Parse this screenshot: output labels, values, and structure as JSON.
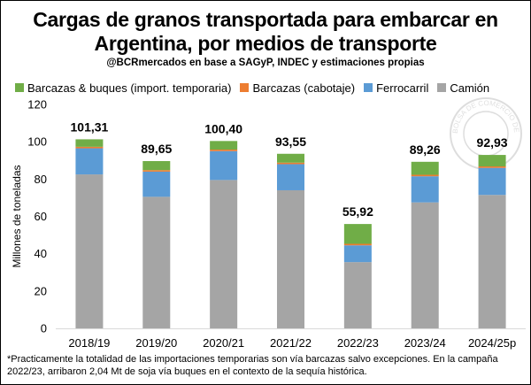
{
  "header": {
    "title_line1": "Cargas de granos transportada para embarcar en",
    "title_line2": "Argentina, por medios de transporte",
    "subtitle": "@BCRmercados en base a SAGyP, INDEC y estimaciones propias"
  },
  "footnote": "*Practicamente la totalidad de las importaciones temporarias son vía barcazas salvo excepciones. En la campaña 2022/23, arribaron 2,04 Mt de soja vía buques en el contexto de la sequía histórica.",
  "watermark": "BOLSA DE COMERCIO DE ROSARIO",
  "colors": {
    "camion": "#a5a5a5",
    "ferrocarril": "#5b9bd5",
    "cabotaje": "#ed7d31",
    "import": "#70ad47",
    "axis": "#d9d9d9"
  },
  "chart_data": {
    "type": "bar",
    "stacked": true,
    "categories": [
      "2018/19",
      "2019/20",
      "2020/21",
      "2021/22",
      "2022/23",
      "2023/24",
      "2024/25p"
    ],
    "series": [
      {
        "name": "Camión",
        "color_key": "camion",
        "values": [
          82.5,
          70.5,
          79.5,
          74.0,
          35.5,
          67.5,
          71.5
        ]
      },
      {
        "name": "Ferrocarril",
        "color_key": "ferrocarril",
        "values": [
          14.0,
          13.5,
          15.5,
          14.0,
          9.0,
          14.0,
          14.5
        ]
      },
      {
        "name": "Barcazas (cabotaje)",
        "color_key": "cabotaje",
        "values": [
          0.8,
          0.8,
          0.8,
          0.8,
          0.8,
          0.8,
          0.8
        ]
      },
      {
        "name": "Barcazas & buques (import. temporaria)",
        "color_key": "import",
        "values": [
          4.01,
          4.85,
          4.6,
          4.75,
          10.62,
          6.96,
          6.13
        ]
      }
    ],
    "totals": [
      "101,31",
      "89,65",
      "100,40",
      "93,55",
      "55,92",
      "89,26",
      "92,93"
    ],
    "total_values": [
      101.31,
      89.65,
      100.4,
      93.55,
      55.92,
      89.26,
      92.93
    ],
    "ylabel": "Millones de toneladas",
    "ylim": [
      0,
      120
    ],
    "yticks": [
      0,
      20,
      40,
      60,
      80,
      100,
      120
    ],
    "grid": false,
    "legend_position": "top",
    "legend_order": [
      "Barcazas & buques (import. temporaria)",
      "Barcazas (cabotaje)",
      "Ferrocarril",
      "Camión"
    ]
  }
}
